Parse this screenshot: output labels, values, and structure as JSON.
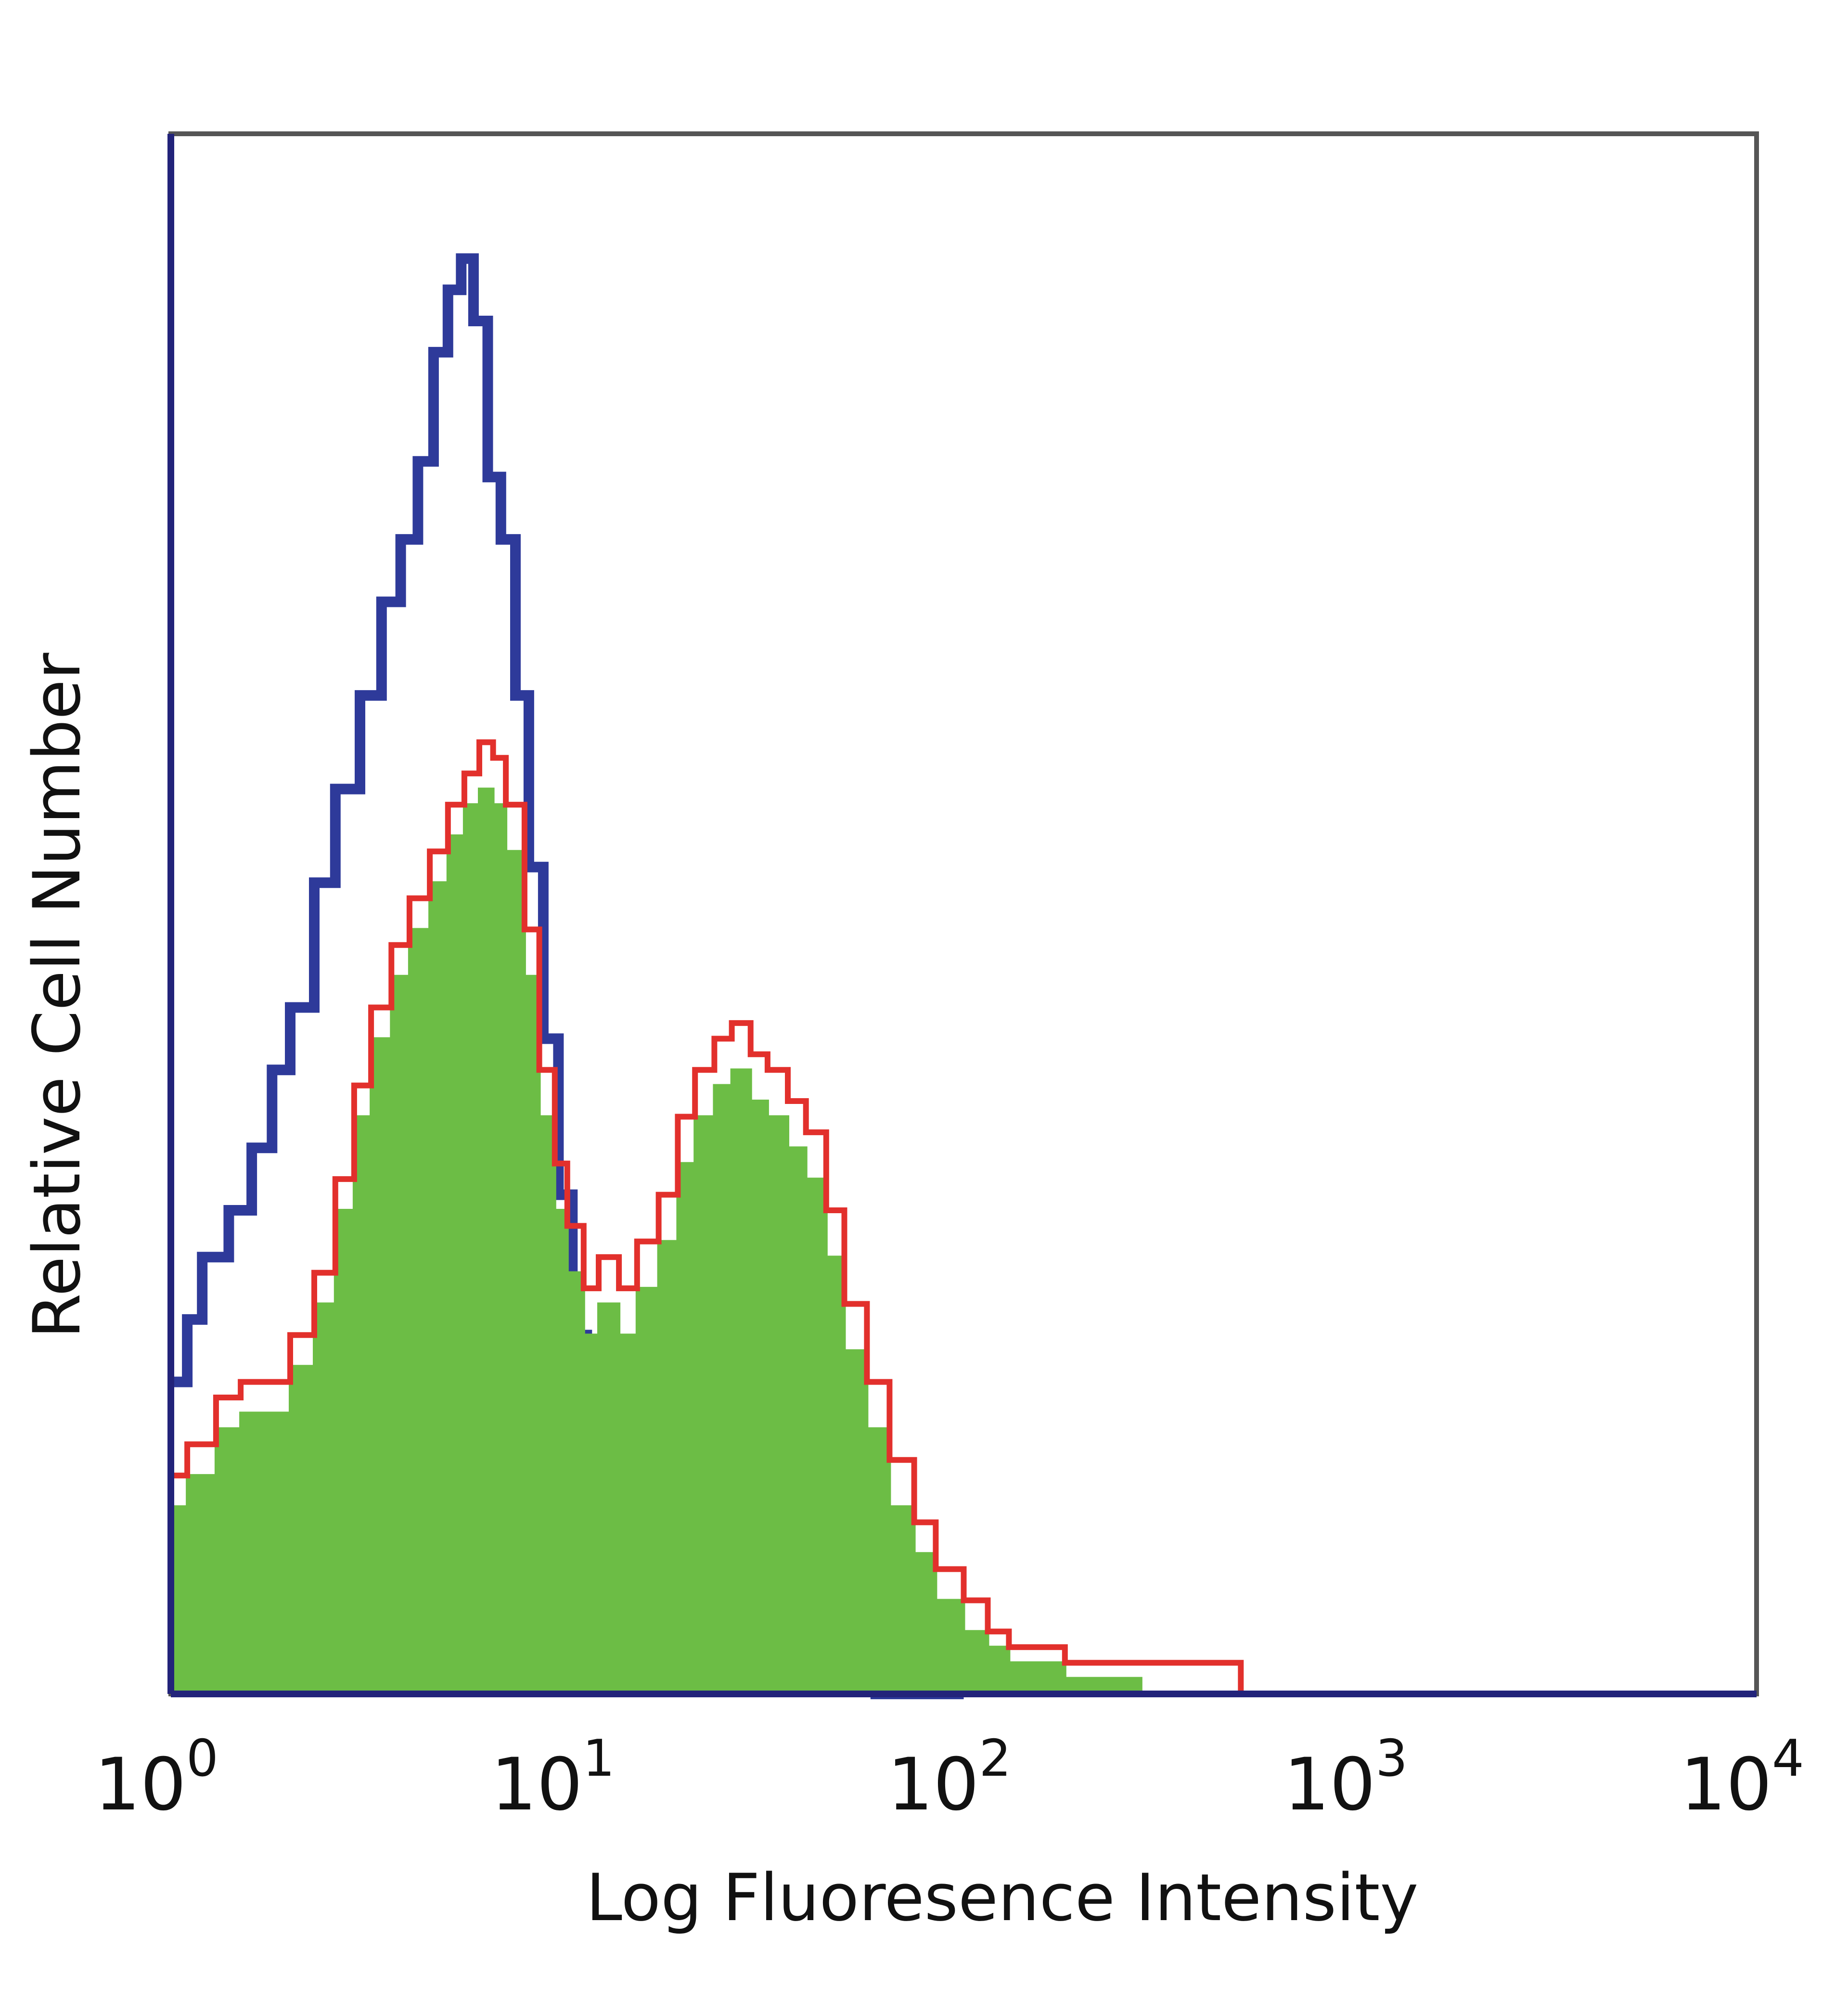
{
  "chart_data": {
    "type": "area",
    "xlabel": "Log Fluoresence Intensity",
    "ylabel": "Relative Cell Number",
    "x_scale": "log",
    "xlim": [
      1,
      10000
    ],
    "ylim": [
      0,
      100
    ],
    "grid": false,
    "x_ticks": [
      {
        "base": "10",
        "exp": "0",
        "value": 1
      },
      {
        "base": "10",
        "exp": "1",
        "value": 10
      },
      {
        "base": "10",
        "exp": "2",
        "value": 100
      },
      {
        "base": "10",
        "exp": "3",
        "value": 1000
      },
      {
        "base": "10",
        "exp": "4",
        "value": 10000
      }
    ],
    "series": [
      {
        "style": "outline",
        "color": "#2e3a9a",
        "x": [
          1.0,
          1.1,
          1.2,
          1.4,
          1.6,
          1.8,
          2.0,
          2.3,
          2.6,
          3.0,
          3.4,
          3.8,
          4.2,
          4.6,
          5.0,
          5.4,
          5.8,
          6.3,
          6.8,
          7.4,
          8.0,
          8.7,
          9.5,
          10.3,
          11.2,
          12.2,
          13.5,
          15.0,
          17.0,
          19.0,
          22.0,
          25.0,
          30.0,
          40.0,
          60.0,
          100.0
        ],
        "y": [
          20,
          24,
          28,
          31,
          35,
          40,
          44,
          52,
          58,
          64,
          70,
          74,
          79,
          86,
          90,
          92,
          88,
          78,
          74,
          64,
          53,
          42,
          32,
          23,
          16,
          10,
          6,
          4,
          3,
          2,
          1,
          1,
          1,
          1,
          0,
          0
        ]
      },
      {
        "style": "outline",
        "color": "#e2302c",
        "x": [
          1.0,
          1.1,
          1.3,
          1.5,
          1.8,
          2.0,
          2.3,
          2.6,
          2.9,
          3.2,
          3.6,
          4.0,
          4.5,
          5.0,
          5.5,
          6.0,
          6.5,
          7.0,
          7.8,
          8.5,
          9.3,
          10.0,
          11.0,
          12.0,
          13.5,
          15.0,
          17.0,
          19.0,
          21.0,
          23.5,
          26.0,
          29.0,
          32.0,
          36.0,
          40.0,
          45.0,
          50.0,
          57.0,
          65.0,
          75.0,
          85.0,
          100.0,
          115.0,
          130.0,
          150.0,
          180.0,
          220.0,
          280.0,
          350.0,
          420.0,
          500.0
        ],
        "y": [
          14,
          16,
          19,
          20,
          20,
          23,
          27,
          33,
          39,
          44,
          48,
          51,
          54,
          57,
          59,
          61,
          60,
          57,
          49,
          40,
          34,
          30,
          26,
          28,
          26,
          29,
          32,
          37,
          40,
          42,
          43,
          41,
          40,
          38,
          36,
          31,
          25,
          20,
          15,
          11,
          8,
          6,
          4,
          3,
          3,
          2,
          2,
          2,
          2,
          2,
          0
        ]
      },
      {
        "style": "filled",
        "color": "#6cbd45",
        "x": [
          1.0,
          1.1,
          1.3,
          1.5,
          1.8,
          2.0,
          2.3,
          2.6,
          2.9,
          3.2,
          3.6,
          4.0,
          4.5,
          5.0,
          5.5,
          6.0,
          6.5,
          7.0,
          7.8,
          8.5,
          9.3,
          10.0,
          11.0,
          12.0,
          13.5,
          15.0,
          17.0,
          19.0,
          21.0,
          23.5,
          26.0,
          29.0,
          32.0,
          36.0,
          40.0,
          45.0,
          50.0,
          57.0,
          65.0,
          75.0,
          85.0,
          100.0,
          115.0,
          130.0,
          150.0,
          180.0,
          220.0,
          280.0,
          350.0,
          420.0,
          500.0
        ],
        "y": [
          12,
          14,
          17,
          18,
          18,
          21,
          25,
          31,
          37,
          42,
          46,
          49,
          52,
          55,
          57,
          58,
          57,
          54,
          46,
          37,
          31,
          27,
          23,
          25,
          23,
          26,
          29,
          34,
          37,
          39,
          40,
          38,
          37,
          35,
          33,
          28,
          22,
          17,
          12,
          9,
          6,
          4,
          3,
          2,
          2,
          1,
          1,
          0,
          0,
          0,
          0
        ]
      }
    ]
  }
}
